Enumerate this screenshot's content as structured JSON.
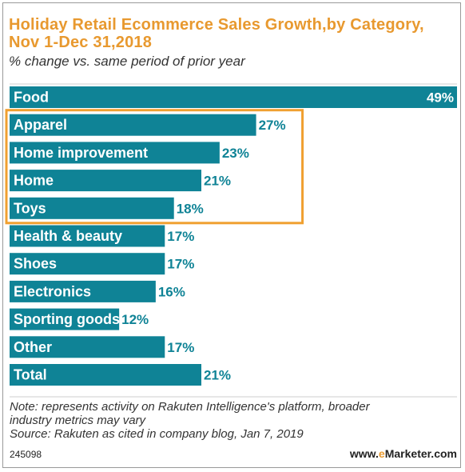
{
  "header": {
    "title_line1": "Holiday Retail Ecommerce Sales Growth,by Category,",
    "title_line2": "Nov 1-Dec 31,2018",
    "subtitle": "% change vs. same period of prior year"
  },
  "chart_data": {
    "type": "bar",
    "orientation": "horizontal",
    "title": "Holiday Retail Ecommerce Sales Growth,by Category, Nov 1-Dec 31,2018",
    "subtitle": "% change vs. same period of prior year",
    "categories": [
      "Food",
      "Apparel",
      "Home improvement",
      "Home",
      "Toys",
      "Health & beauty",
      "Shoes",
      "Electronics",
      "Sporting goods",
      "Other",
      "Total"
    ],
    "values": [
      49,
      27,
      23,
      21,
      18,
      17,
      17,
      16,
      12,
      17,
      21
    ],
    "value_labels": [
      "49%",
      "27%",
      "23%",
      "21%",
      "18%",
      "17%",
      "17%",
      "16%",
      "12%",
      "17%",
      "21%"
    ],
    "xlim": [
      0,
      49
    ],
    "grid": false,
    "legend": "none",
    "highlighted_categories": [
      "Apparel",
      "Home improvement",
      "Home",
      "Toys"
    ],
    "colors": {
      "bar": "#0f8396",
      "highlight_box": "#f0a030",
      "title": "#e8992f"
    }
  },
  "footer": {
    "note_line1": "Note: represents activity on Rakuten Intelligence's platform, broader",
    "note_line2": "industry metrics may vary",
    "source": "Source: Rakuten as cited in company blog, Jan 7, 2019",
    "chart_id": "245098",
    "brand_prefix": "www.",
    "brand_e": "e",
    "brand_rest": "Marketer.com"
  }
}
